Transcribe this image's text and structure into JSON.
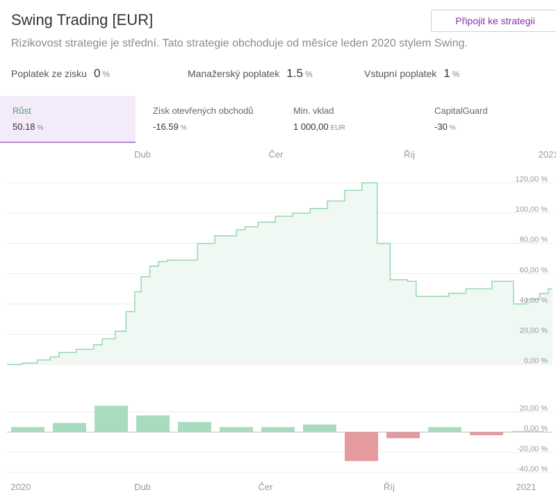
{
  "header": {
    "title": "Swing Trading [EUR]",
    "connect_button": "Připojit ke strategii",
    "subtitle": "Rizikovost strategie je střední. Tato strategie obchoduje od měsíce leden 2020 stylem Swing."
  },
  "fees": [
    {
      "label": "Poplatek ze zisku",
      "value": "0",
      "unit": "%"
    },
    {
      "label": "Manažerský poplatek",
      "value": "1.5",
      "unit": "%"
    },
    {
      "label": "Vstupní poplatek",
      "value": "1",
      "unit": "%"
    }
  ],
  "stats": [
    {
      "label": "Růst",
      "value": "50.18",
      "unit": "%"
    },
    {
      "label": "Zisk otevřených obchodů",
      "value": "-16.59",
      "unit": "%"
    },
    {
      "label": "Min. vklad",
      "value": "1 000,00",
      "unit": "EUR"
    },
    {
      "label": "CapitalGuard",
      "value": "-30",
      "unit": "%"
    }
  ],
  "colors": {
    "accent": "#8a2fb4",
    "growth_line": "#8fd4ac",
    "growth_fill": "#f0f8f3",
    "positive_bar": "#a9dcbf",
    "negative_bar": "#e59aa0",
    "active_tab_bg": "#f3eafa"
  },
  "chart_data": [
    {
      "type": "area",
      "top_axis_labels": [
        "Dub",
        "Čer",
        "Říj",
        "2021"
      ],
      "y_tick_labels": [
        "120,00 %",
        "100,00 %",
        "80,00 %",
        "60,00 %",
        "40,00 %",
        "20,00 %",
        "0,00 %"
      ],
      "y_ticks": [
        120,
        100,
        80,
        60,
        40,
        20,
        0
      ],
      "ylim": [
        -5,
        128
      ],
      "xlim": [
        0,
        12.6
      ],
      "x": [
        0,
        0.35,
        0.7,
        1.0,
        1.2,
        1.6,
        2.0,
        2.2,
        2.5,
        2.75,
        2.95,
        3.1,
        3.3,
        3.5,
        3.7,
        4.0,
        4.4,
        4.8,
        5.0,
        5.3,
        5.5,
        5.8,
        6.2,
        6.6,
        7.0,
        7.4,
        7.8,
        8.2,
        8.45,
        8.55,
        8.75,
        8.85,
        9.25,
        9.45,
        9.8,
        10.2,
        10.6,
        11.2,
        11.45,
        11.7,
        12.0,
        12.3,
        12.5,
        12.6
      ],
      "y": [
        0,
        1,
        3,
        5,
        8,
        10,
        13,
        17,
        22,
        35,
        48,
        58,
        65,
        68,
        69,
        69,
        80,
        85,
        85,
        89,
        91,
        94,
        98,
        100,
        103,
        108,
        115,
        120,
        120,
        80,
        80,
        56,
        55,
        45,
        45,
        47,
        50,
        55,
        55,
        40,
        43,
        47,
        50,
        50
      ]
    },
    {
      "type": "bar",
      "x_labels": [
        "2020",
        "Dub",
        "Čer",
        "Říj",
        "2021"
      ],
      "y_tick_labels": [
        "20,00 %",
        "0,00 %",
        "-20,00 %",
        "-40,00 %"
      ],
      "y_ticks": [
        20,
        0,
        -20,
        -40
      ],
      "ylim": [
        -40,
        25
      ],
      "values": [
        5,
        9,
        26,
        16.5,
        10,
        5,
        5,
        7.5,
        -28.5,
        -6,
        5,
        -3,
        1
      ]
    }
  ]
}
